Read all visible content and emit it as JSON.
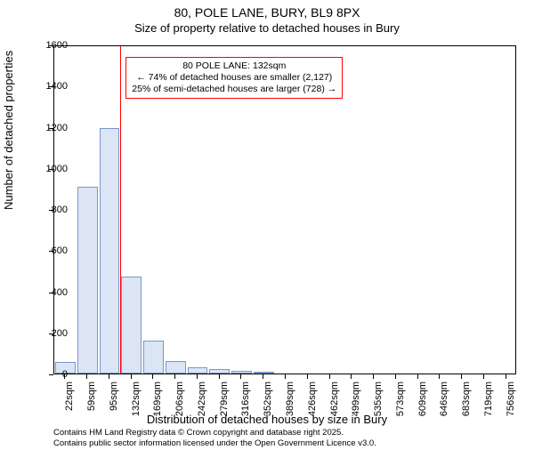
{
  "title_main": "80, POLE LANE, BURY, BL9 8PX",
  "title_sub": "Size of property relative to detached houses in Bury",
  "ylabel": "Number of detached properties",
  "xlabel": "Distribution of detached houses by size in Bury",
  "plot": {
    "border_color": "#000000",
    "background_color": "#ffffff",
    "bar_fill": "#dbe5f4",
    "bar_stroke": "#7a97c9",
    "marker_color": "#ff0000",
    "callout_border": "#ff0000",
    "text_color": "#000000"
  },
  "y_axis": {
    "min": 0,
    "max": 1600,
    "ticks": [
      0,
      200,
      400,
      600,
      800,
      1000,
      1200,
      1400,
      1600
    ]
  },
  "x_axis": {
    "labels": [
      "22sqm",
      "59sqm",
      "95sqm",
      "132sqm",
      "169sqm",
      "206sqm",
      "242sqm",
      "279sqm",
      "316sqm",
      "352sqm",
      "389sqm",
      "426sqm",
      "462sqm",
      "499sqm",
      "535sqm",
      "573sqm",
      "609sqm",
      "646sqm",
      "683sqm",
      "719sqm",
      "756sqm"
    ]
  },
  "bars": [
    55,
    910,
    1195,
    470,
    160,
    60,
    30,
    20,
    15,
    10,
    0,
    0,
    0,
    0,
    0,
    0,
    0,
    0,
    0,
    0,
    0
  ],
  "marker_index": 3,
  "callout": {
    "line1": "80 POLE LANE: 132sqm",
    "line2": "← 74% of detached houses are smaller (2,127)",
    "line3": "25% of semi-detached houses are larger (728) →"
  },
  "attribution": {
    "line1": "Contains HM Land Registry data © Crown copyright and database right 2025.",
    "line2": "Contains public sector information licensed under the Open Government Licence v3.0."
  },
  "fontsize": {
    "title": 14,
    "subtitle": 13,
    "axis_label": 13,
    "tick": 11,
    "callout": 10.5,
    "attribution": 9.5
  }
}
